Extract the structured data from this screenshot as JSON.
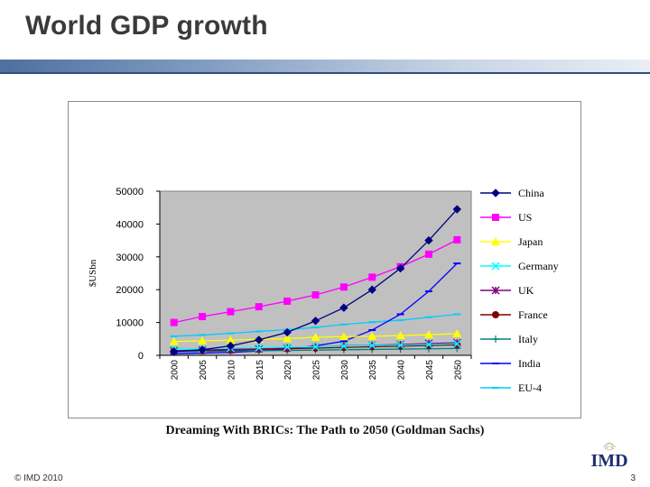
{
  "slide": {
    "title": "World GDP growth",
    "source": "Dreaming With BRICs: The Path to 2050 (Goldman Sachs)",
    "copyright": "© IMD 2010",
    "page_number": "3",
    "logo_text": "IMD"
  },
  "chart_data": {
    "type": "line",
    "title": "",
    "xlabel": "",
    "ylabel": "$USbn",
    "ylim": [
      0,
      50000
    ],
    "yticks": [
      0,
      10000,
      20000,
      30000,
      40000,
      50000
    ],
    "categories": [
      "2000",
      "2005",
      "2010",
      "2015",
      "2020",
      "2025",
      "2030",
      "2035",
      "2040",
      "2045",
      "2050"
    ],
    "grid": false,
    "legend_position": "right",
    "series": [
      {
        "name": "China",
        "color": "#000080",
        "marker": "diamond",
        "values": [
          1100,
          1700,
          2900,
          4700,
          7000,
          10500,
          14500,
          20000,
          26500,
          35000,
          44500
        ]
      },
      {
        "name": "US",
        "color": "#ff00ff",
        "marker": "square",
        "values": [
          10000,
          11800,
          13300,
          14800,
          16500,
          18400,
          20800,
          23800,
          27000,
          30800,
          35200
        ]
      },
      {
        "name": "Japan",
        "color": "#ffff00",
        "marker": "triangle",
        "values": [
          4200,
          4400,
          4600,
          4900,
          5100,
          5500,
          5700,
          5800,
          6000,
          6300,
          6600
        ]
      },
      {
        "name": "Germany",
        "color": "#00ffff",
        "marker": "x",
        "values": [
          1900,
          2000,
          2200,
          2300,
          2500,
          2600,
          2800,
          3000,
          3100,
          3300,
          3500
        ]
      },
      {
        "name": "UK",
        "color": "#800080",
        "marker": "star",
        "values": [
          1400,
          1600,
          1800,
          2000,
          2300,
          2600,
          2900,
          3100,
          3300,
          3600,
          3800
        ]
      },
      {
        "name": "France",
        "color": "#800000",
        "marker": "circle",
        "values": [
          1300,
          1500,
          1600,
          1800,
          2000,
          2200,
          2400,
          2600,
          2800,
          3000,
          3200
        ]
      },
      {
        "name": "Italy",
        "color": "#008080",
        "marker": "plus",
        "values": [
          1100,
          1200,
          1300,
          1400,
          1500,
          1600,
          1700,
          1800,
          1900,
          2000,
          2100
        ]
      },
      {
        "name": "India",
        "color": "#0000ff",
        "marker": "dash",
        "values": [
          500,
          700,
          900,
          1300,
          1900,
          2900,
          4300,
          7700,
          12500,
          19500,
          28000
        ]
      },
      {
        "name": "EU-4",
        "color": "#00ccff",
        "marker": "dash",
        "values": [
          5800,
          6200,
          6700,
          7300,
          7800,
          8500,
          9400,
          10100,
          10700,
          11600,
          12500
        ]
      }
    ]
  }
}
